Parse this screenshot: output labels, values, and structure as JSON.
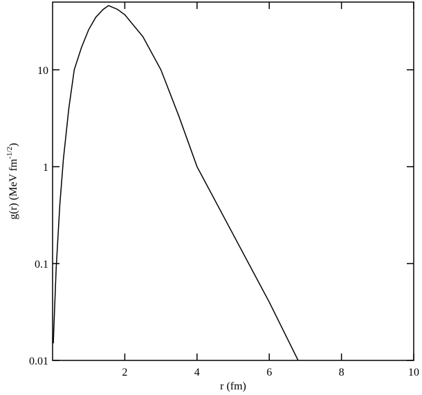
{
  "chart_data": {
    "type": "line",
    "xlabel": "r (fm)",
    "ylabel": {
      "text": "g(r)   (MeV fm",
      "superscript": "-1/2",
      "suffix": ")"
    },
    "x": [
      0.02,
      0.05,
      0.1,
      0.2,
      0.3,
      0.45,
      0.6,
      0.8,
      1.0,
      1.2,
      1.4,
      1.55,
      1.8,
      2.0,
      2.5,
      3.0,
      3.5,
      4.0,
      5.0,
      6.0,
      6.8
    ],
    "series": [
      {
        "color": "#000000",
        "values": [
          0.015,
          0.03,
          0.09,
          0.4,
          1.2,
          4,
          10,
          17,
          26,
          35,
          42,
          46,
          42,
          37,
          22,
          10,
          3.3,
          1,
          0.2,
          0.04,
          0.01
        ]
      }
    ],
    "xlim": [
      0,
      10
    ],
    "xticks": [
      2,
      4,
      6,
      8,
      10
    ],
    "ylim": [
      0.01,
      50
    ],
    "yticks": [
      0.01,
      0.1,
      1,
      10
    ],
    "ylog": true
  }
}
